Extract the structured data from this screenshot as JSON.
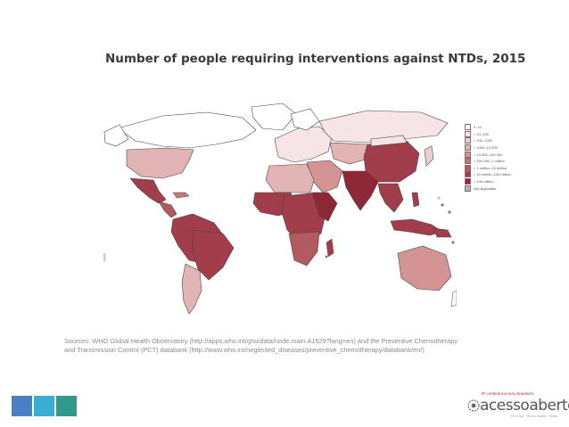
{
  "title": "Number of people requiring interventions against NTDs, 2015",
  "legend": [
    {
      "label": "0–10",
      "color": "#ffffff"
    },
    {
      "label": "> 10–100",
      "color": "#f7e4e4"
    },
    {
      "label": "> 100–1000",
      "color": "#eecfcf"
    },
    {
      "label": "> 1000–10 000",
      "color": "#e2b3b3"
    },
    {
      "label": "> 10 000–100 000",
      "color": "#d49494"
    },
    {
      "label": "> 100 000–1 million",
      "color": "#c47777"
    },
    {
      "label": "> 1 million–10 million",
      "color": "#b35a5f"
    },
    {
      "label": "> 10 million–100 million",
      "color": "#a23e4b"
    },
    {
      "label": "> 100 million",
      "color": "#8e2738"
    },
    {
      "label": "Not applicable",
      "color": "#b5b5b5"
    }
  ],
  "sources_line1": "Sources: WHO Global Health Observatory (http://apps.who.int/gho/data/node.main.A1629?lang=en) and the Preventive Chemotherapy",
  "sources_line2": "and Transmission Control (PCT) databank (http://www.who.int/neglected_diseases/preventive_chemotherapy/databank/en/)",
  "side_numbers": "0000",
  "brand": {
    "tag": "8ª conferência luso-brasileira",
    "name": "acessoaberto",
    "sub": "FIOCRUZ · Rio de Janeiro · Brasil"
  },
  "footer_colors": [
    "#4a7fc1",
    "#3aaed0",
    "#2d9a8c"
  ]
}
